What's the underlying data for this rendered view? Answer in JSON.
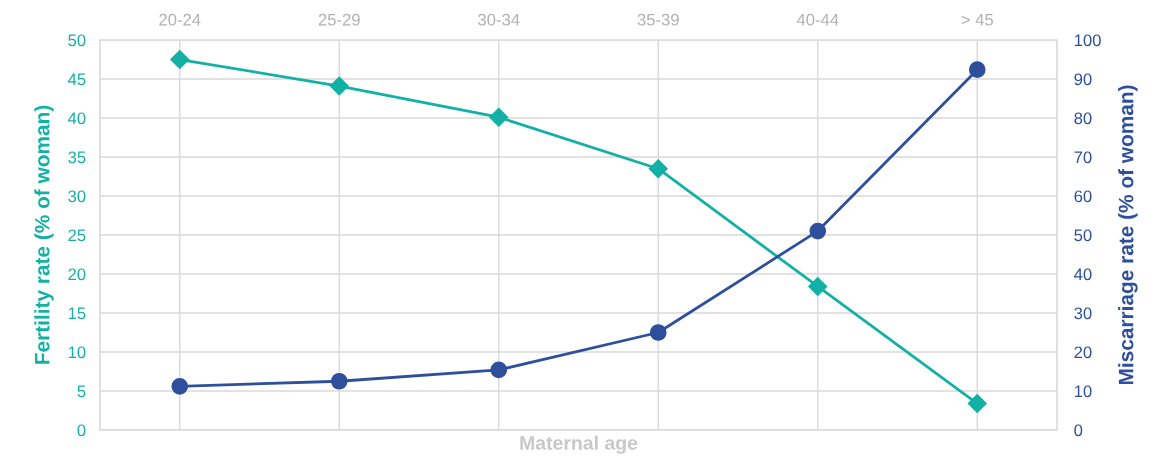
{
  "chart_data": {
    "type": "line",
    "xlabel": "Maternal age",
    "ylabel": "Fertility rate (% of woman)",
    "y2label": "Miscarriage rate (% of woman)",
    "categories": [
      "20-24",
      "25-29",
      "30-34",
      "35-39",
      "40-44",
      "> 45"
    ],
    "series": [
      {
        "color": "#13b0a5",
        "marker": "diamond",
        "values": [
          47.5,
          44.1,
          40.1,
          33.5,
          18.4,
          3.4
        ]
      },
      {
        "color": "#2e4f9c",
        "marker": "circle",
        "axis": "y2",
        "values": [
          11.2,
          12.5,
          15.4,
          25,
          51,
          92.4
        ]
      }
    ],
    "ylim": [
      0,
      50
    ],
    "yticks": [
      0,
      5,
      10,
      15,
      20,
      25,
      30,
      35,
      40,
      45,
      50
    ],
    "y2lim": [
      0,
      100
    ],
    "y2ticks": [
      0,
      10,
      20,
      30,
      40,
      50,
      60,
      70,
      80,
      90,
      100
    ],
    "grid": true,
    "line_style": "solid"
  }
}
